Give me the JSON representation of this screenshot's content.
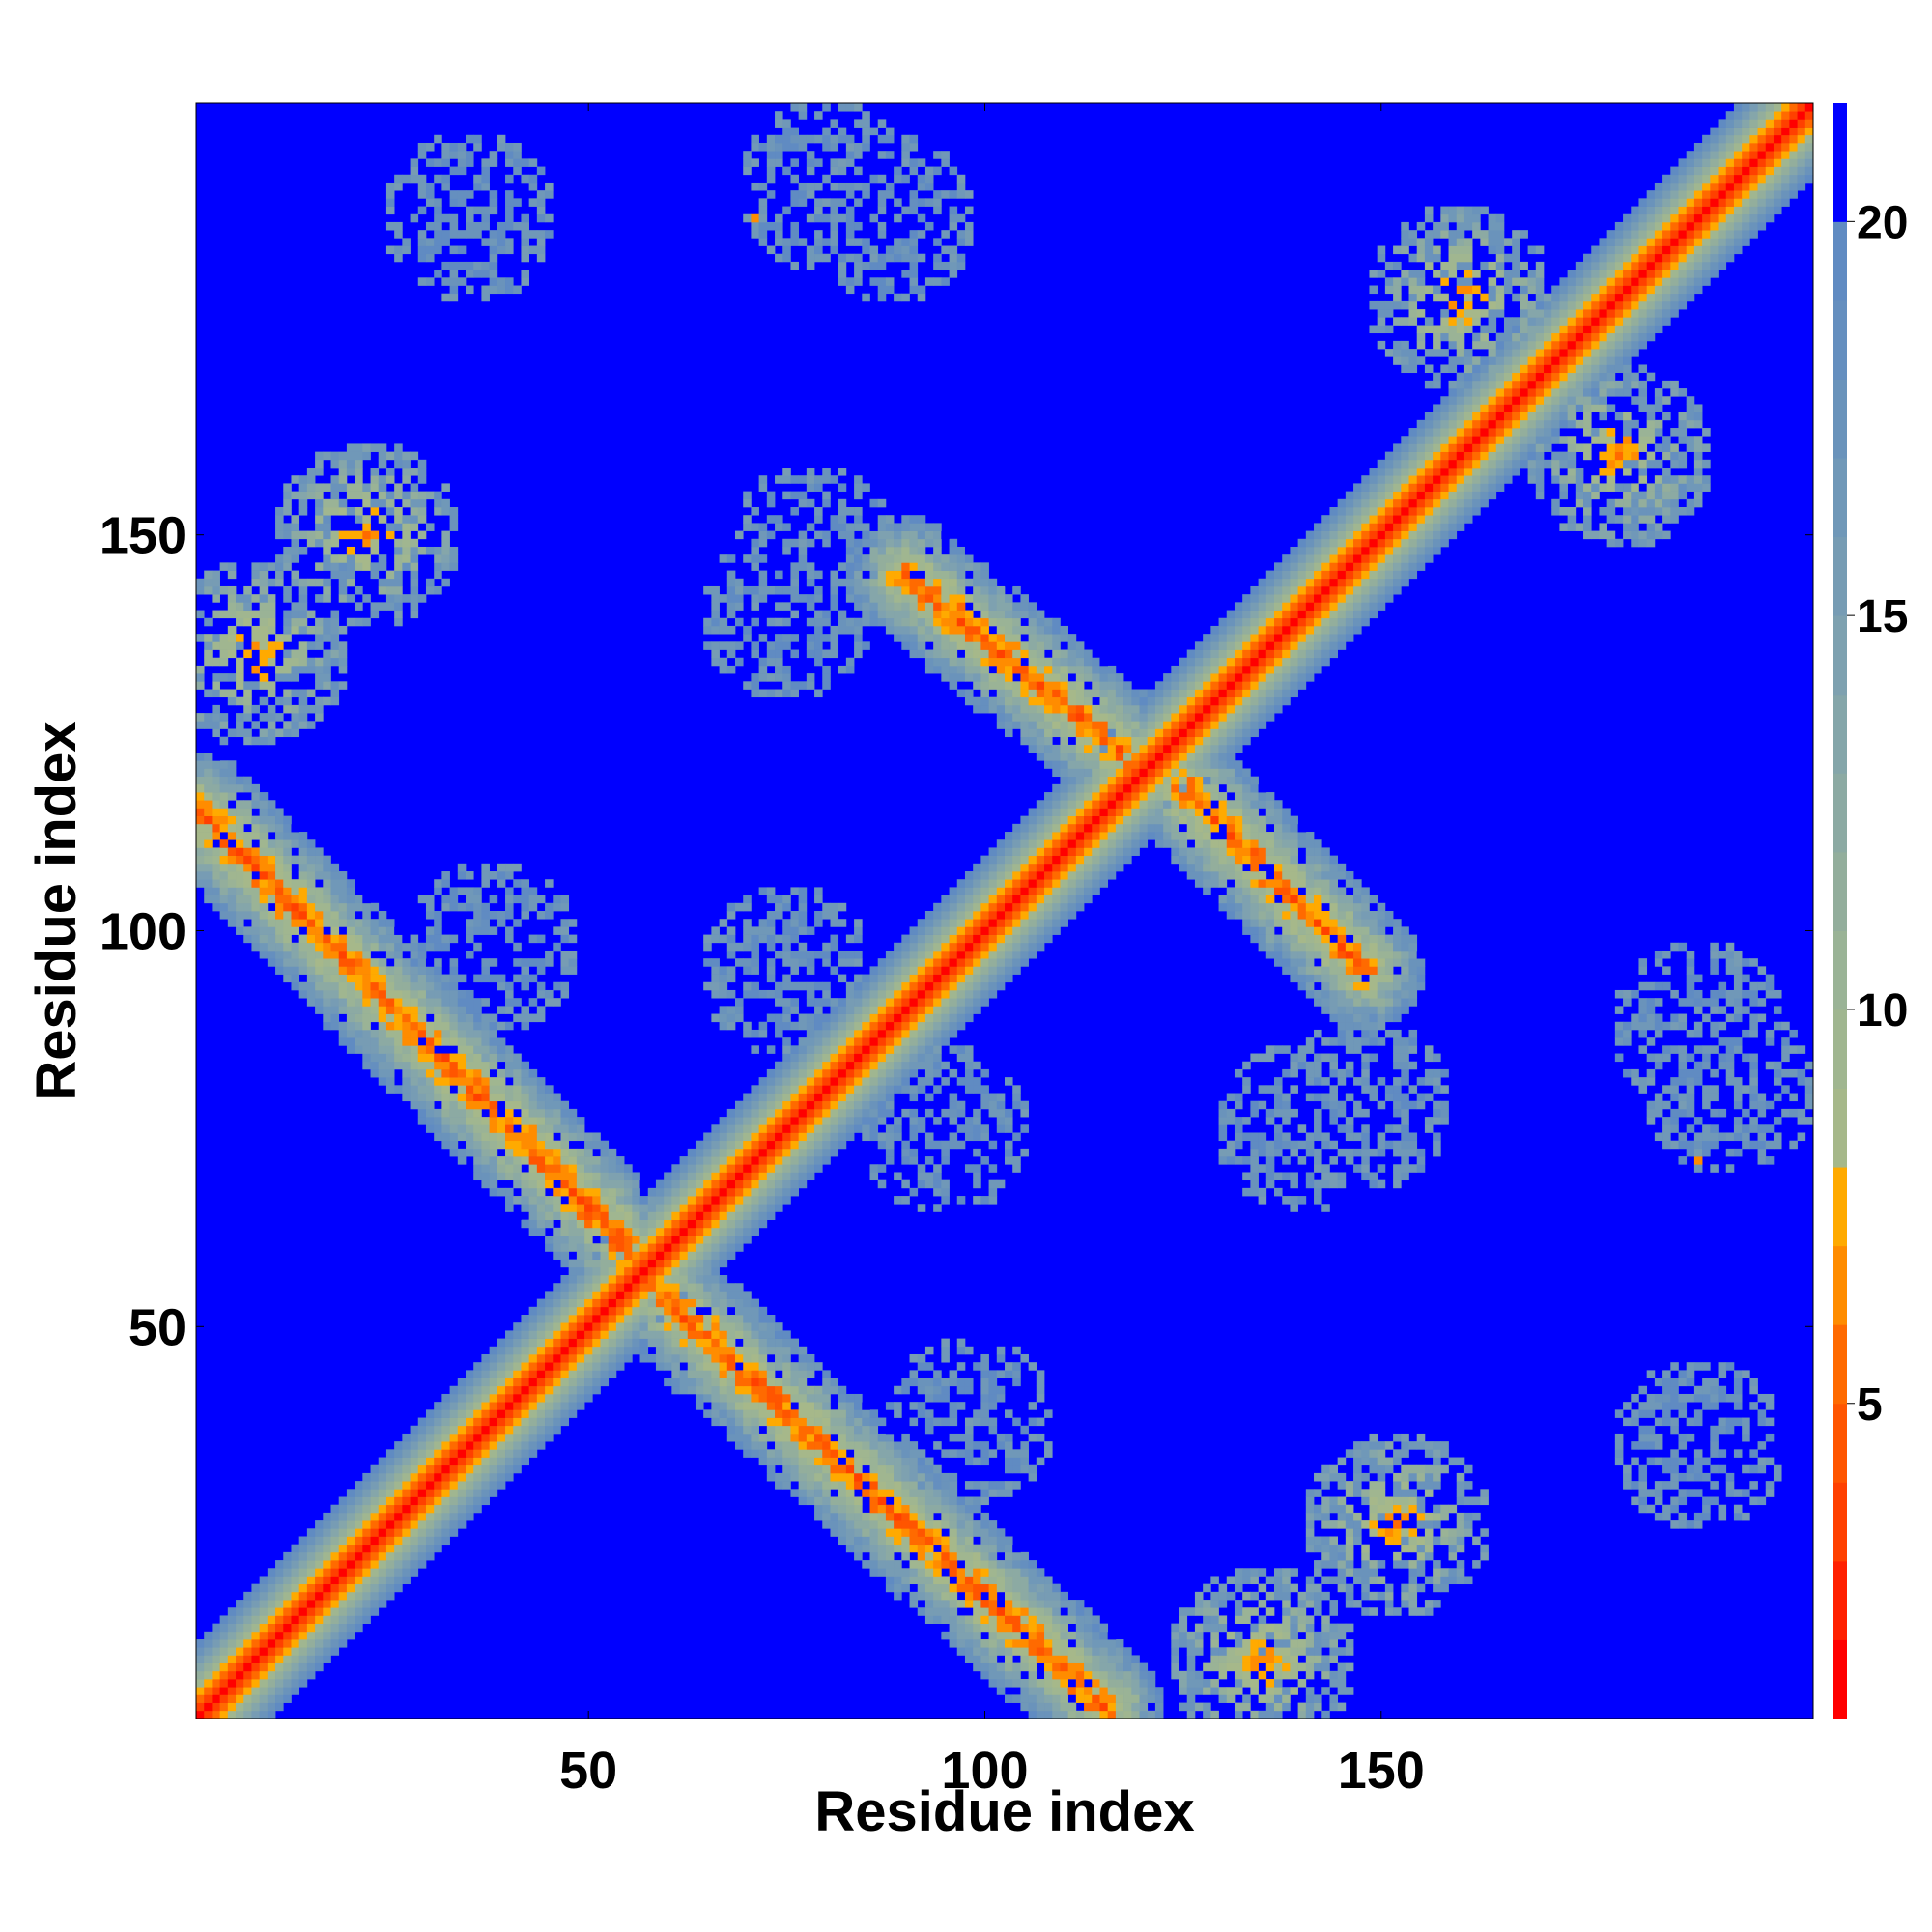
{
  "chart_data": {
    "type": "heatmap",
    "title": "",
    "xlabel": "Residue index",
    "ylabel": "Residue index",
    "xlim": [
      1,
      204
    ],
    "ylim": [
      1,
      204
    ],
    "xticks": [
      50,
      100,
      150
    ],
    "yticks": [
      50,
      100,
      150
    ],
    "colorbar": {
      "range": [
        1,
        21.5
      ],
      "ticks": [
        5,
        10,
        15,
        20
      ],
      "levels": [
        {
          "upper": 2,
          "color": "#ff0000"
        },
        {
          "upper": 3,
          "color": "#ff2000"
        },
        {
          "upper": 4,
          "color": "#ff4000"
        },
        {
          "upper": 5,
          "color": "#ff5500"
        },
        {
          "upper": 6,
          "color": "#ff6a00"
        },
        {
          "upper": 7,
          "color": "#ff8c00"
        },
        {
          "upper": 8,
          "color": "#ffaa00"
        },
        {
          "upper": 9,
          "color": "#a6b88a"
        },
        {
          "upper": 10,
          "color": "#a0b690"
        },
        {
          "upper": 11,
          "color": "#9ab396"
        },
        {
          "upper": 12,
          "color": "#93ae9c"
        },
        {
          "upper": 13,
          "color": "#8caaa3"
        },
        {
          "upper": 14,
          "color": "#85a6aa"
        },
        {
          "upper": 15,
          "color": "#7ea1b0"
        },
        {
          "upper": 16,
          "color": "#779cb4"
        },
        {
          "upper": 17,
          "color": "#7098b8"
        },
        {
          "upper": 18,
          "color": "#6a93bb"
        },
        {
          "upper": 19,
          "color": "#658fbf"
        },
        {
          "upper": 20,
          "color": "#608bc2"
        },
        {
          "upper": 21.5,
          "color": "#0000ff"
        }
      ]
    },
    "background_value": 21.5,
    "features": [
      {
        "kind": "diagonal",
        "note": "main diagonal i=j, distance rising from ~1 to ~20 over |i-j| 0..9"
      },
      {
        "kind": "anti-band",
        "from": [
          1,
          115
        ],
        "to": [
          55,
          60
        ],
        "min_value": 5
      },
      {
        "kind": "anti-band",
        "from": [
          58,
          55
        ],
        "to": [
          115,
          2
        ],
        "min_value": 5
      },
      {
        "kind": "anti-band",
        "from": [
          90,
          145
        ],
        "to": [
          118,
          122
        ],
        "min_value": 5
      },
      {
        "kind": "anti-band",
        "from": [
          125,
          118
        ],
        "to": [
          148,
          95
        ],
        "min_value": 5
      },
      {
        "kind": "patch",
        "center": [
          22,
          150
        ],
        "min_value": 5
      },
      {
        "kind": "patch",
        "center": [
          8,
          135
        ],
        "min_value": 5
      },
      {
        "kind": "patch",
        "center": [
          152,
          25
        ],
        "min_value": 5
      },
      {
        "kind": "patch",
        "center": [
          135,
          8
        ],
        "min_value": 5
      },
      {
        "kind": "patch",
        "center": [
          160,
          180
        ],
        "min_value": 5
      },
      {
        "kind": "patch",
        "center": [
          180,
          160
        ],
        "min_value": 5
      },
      {
        "kind": "patch",
        "center": [
          35,
          190
        ],
        "min_value": 15
      },
      {
        "kind": "patch",
        "center": [
          190,
          35
        ],
        "min_value": 15
      },
      {
        "kind": "patch",
        "center": [
          38,
          98
        ],
        "min_value": 15
      },
      {
        "kind": "patch",
        "center": [
          98,
          38
        ],
        "min_value": 15
      },
      {
        "kind": "patch",
        "center": [
          88,
          190
        ],
        "min_value": 15
      },
      {
        "kind": "patch",
        "center": [
          190,
          88
        ],
        "min_value": 15
      },
      {
        "kind": "patch",
        "center": [
          78,
          148
        ],
        "min_value": 15
      },
      {
        "kind": "patch",
        "center": [
          148,
          78
        ],
        "min_value": 15
      },
      {
        "kind": "patch",
        "center": [
          75,
          95
        ],
        "min_value": 15
      },
      {
        "kind": "patch",
        "center": [
          95,
          75
        ],
        "min_value": 15
      },
      {
        "kind": "patch",
        "center": [
          140,
          75
        ],
        "min_value": 15
      },
      {
        "kind": "patch",
        "center": [
          75,
          140
        ],
        "min_value": 15
      },
      {
        "kind": "patch",
        "center": [
          194,
          80
        ],
        "min_value": 15
      },
      {
        "kind": "patch",
        "center": [
          80,
          194
        ],
        "min_value": 15
      },
      {
        "kind": "point",
        "at": [
          71,
          190
        ],
        "value": 7
      },
      {
        "kind": "point",
        "at": [
          190,
          71
        ],
        "value": 7
      }
    ]
  }
}
